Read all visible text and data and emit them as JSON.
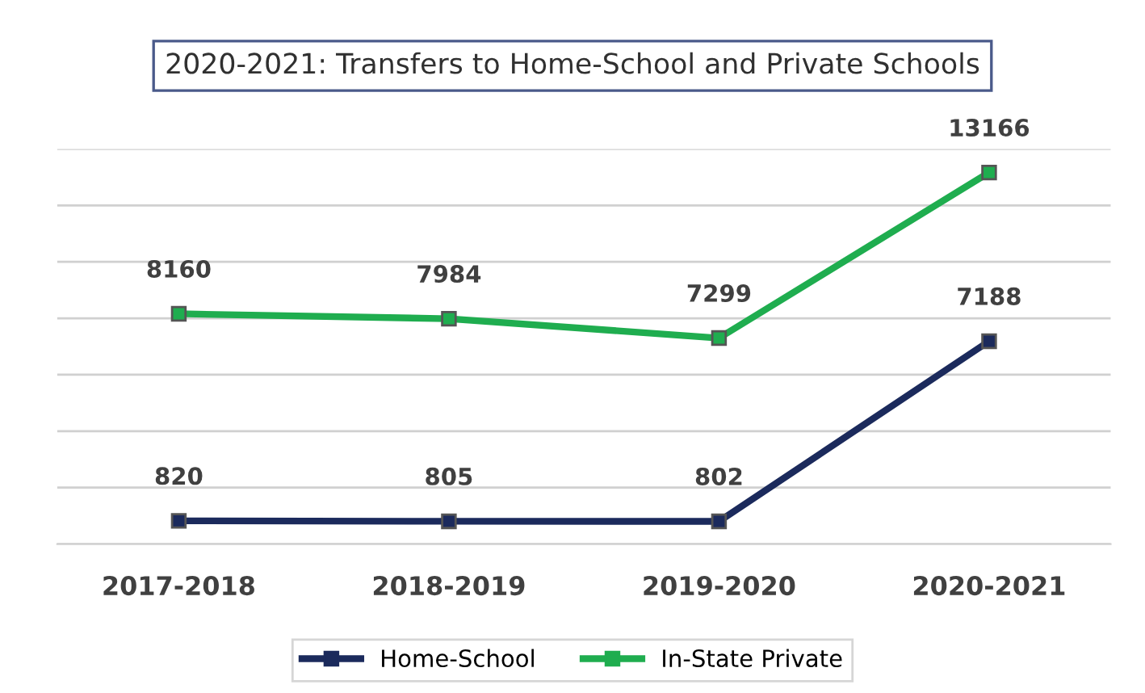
{
  "chart_data": {
    "type": "line",
    "title": "2020-2021: Transfers to Home-School and Private Schools",
    "categories": [
      "2017-2018",
      "2018-2019",
      "2019-2020",
      "2020-2021"
    ],
    "series": [
      {
        "name": "Home-School",
        "color": "#1b2a5c",
        "values": [
          820,
          805,
          802,
          7188
        ]
      },
      {
        "name": "In-State Private",
        "color": "#1fad4f",
        "values": [
          8160,
          7984,
          7299,
          13166
        ]
      }
    ],
    "ylim": [
      0,
      14000
    ],
    "yticks": [
      {
        "value": 0,
        "label": null
      },
      {
        "value": 2000,
        "label": null
      },
      {
        "value": 4000,
        "label": null
      },
      {
        "value": 6000,
        "label": null
      },
      {
        "value": 8000,
        "label": null
      },
      {
        "value": 10000,
        "label": null
      },
      {
        "value": 12000,
        "label": null
      },
      {
        "value": 14000,
        "label": null
      }
    ],
    "tick_labels": "x",
    "grid": "y",
    "legend": "bottom",
    "marker": "square",
    "line_style": "solid",
    "data_labels": true
  }
}
